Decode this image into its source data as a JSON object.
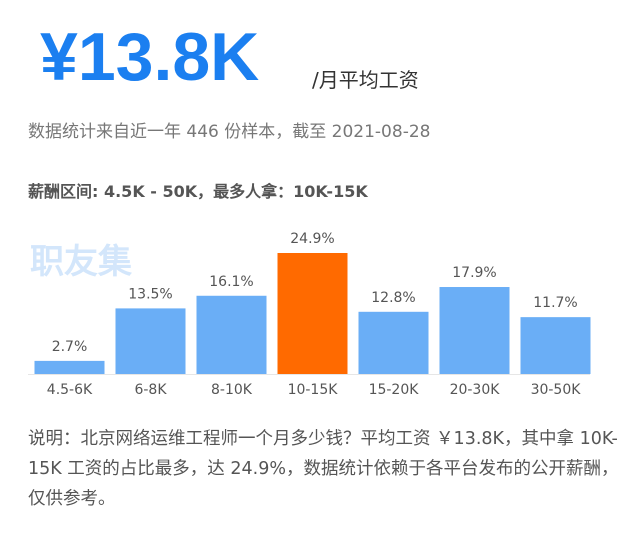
{
  "header": {
    "price": "¥13.8K",
    "unit": "/月平均工资",
    "source": "数据统计来自近一年 446 份样本，截至 2021-08-28"
  },
  "range": "薪酬区间: 4.5K - 50K，最多人拿：10K-15K",
  "watermark": "职友集",
  "chart_data": {
    "type": "bar",
    "categories": [
      "4.5-6K",
      "6-8K",
      "8-10K",
      "10-15K",
      "15-20K",
      "20-30K",
      "30-50K"
    ],
    "values": [
      2.7,
      13.5,
      16.1,
      24.9,
      12.8,
      17.9,
      11.7
    ],
    "value_labels": [
      "2.7%",
      "13.5%",
      "16.1%",
      "24.9%",
      "12.8%",
      "17.9%",
      "11.7%"
    ],
    "colors": [
      "#6aaef6",
      "#6aaef6",
      "#6aaef6",
      "#ff6a00",
      "#6aaef6",
      "#6aaef6",
      "#6aaef6"
    ]
  },
  "note": "说明：北京网络运维工程师一个月多少钱？平均工资 ￥13.8K，其中拿 10K-15K 工资的占比最多，达 24.9%，数据统计依赖于各平台发布的公开薪酬，仅供参考。"
}
